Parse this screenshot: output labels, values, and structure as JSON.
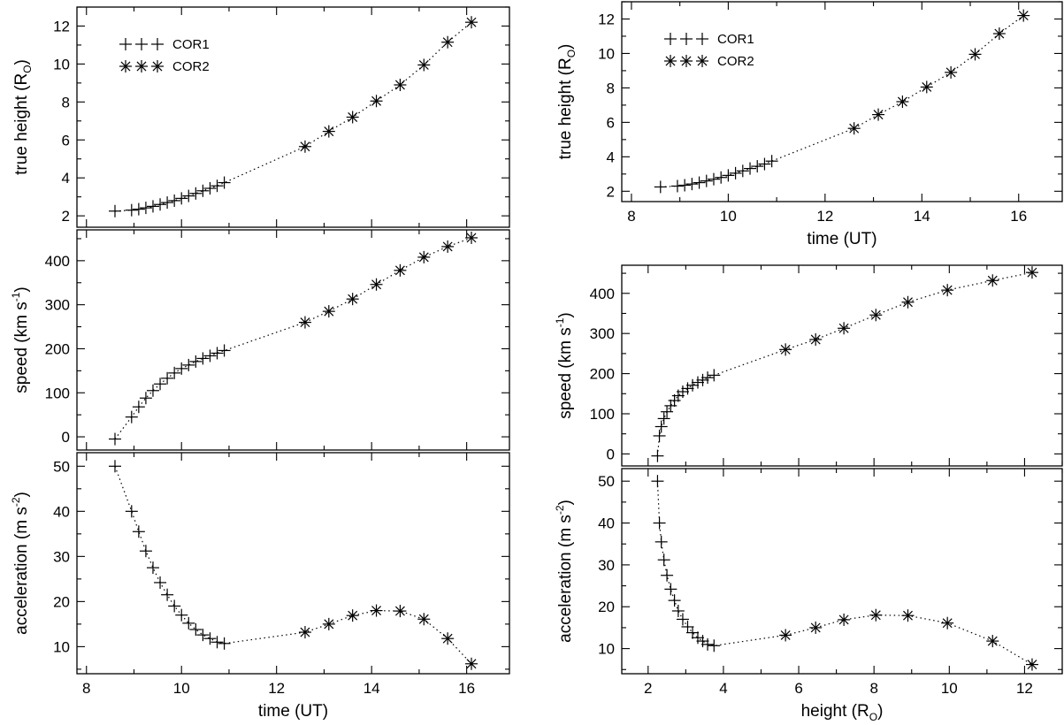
{
  "chart_data": [
    {
      "id": "lt",
      "type": "line",
      "ylabel": "true height (R⊙)",
      "ylabel_base": "true height (R",
      "ylabel_sub": "O",
      "ylabel_end": ")",
      "xlim": [
        7.8,
        16.9
      ],
      "ylim": [
        1.4,
        13.0
      ],
      "xticks": [
        8,
        10,
        12,
        14,
        16
      ],
      "yticks": [
        2,
        4,
        6,
        8,
        10,
        12
      ],
      "show_xticklabels": false,
      "legend": [
        {
          "label": "COR1",
          "marker": "plus"
        },
        {
          "label": "COR2",
          "marker": "star"
        }
      ],
      "series": [
        {
          "name": "COR1",
          "marker": "plus",
          "x": [
            8.6,
            8.95,
            9.1,
            9.25,
            9.4,
            9.55,
            9.7,
            9.85,
            10.0,
            10.15,
            10.3,
            10.45,
            10.6,
            10.75,
            10.9
          ],
          "y": [
            2.25,
            2.3,
            2.35,
            2.42,
            2.5,
            2.6,
            2.7,
            2.8,
            2.92,
            3.05,
            3.18,
            3.32,
            3.45,
            3.58,
            3.75
          ]
        },
        {
          "name": "COR2",
          "marker": "star",
          "x": [
            12.6,
            13.1,
            13.6,
            14.1,
            14.6,
            15.1,
            15.6,
            16.1
          ],
          "y": [
            5.65,
            6.45,
            7.2,
            8.05,
            8.9,
            9.95,
            11.15,
            12.2
          ]
        }
      ]
    },
    {
      "id": "lm",
      "type": "line",
      "ylabel": "speed (km s⁻¹)",
      "ylabel_base": "speed (km s",
      "ylabel_sup": "-1",
      "ylabel_end": ")",
      "xlim": [
        7.8,
        16.9
      ],
      "ylim": [
        -30,
        470
      ],
      "xticks": [
        8,
        10,
        12,
        14,
        16
      ],
      "yticks": [
        0,
        100,
        200,
        300,
        400
      ],
      "show_xticklabels": false,
      "series": [
        {
          "name": "COR1",
          "marker": "plus",
          "x": [
            8.6,
            8.95,
            9.1,
            9.25,
            9.4,
            9.55,
            9.7,
            9.85,
            10.0,
            10.15,
            10.3,
            10.45,
            10.6,
            10.75,
            10.9
          ],
          "y": [
            -5,
            45,
            68,
            88,
            105,
            120,
            133,
            145,
            155,
            163,
            171,
            178,
            184,
            190,
            196
          ]
        },
        {
          "name": "COR2",
          "marker": "star",
          "x": [
            12.6,
            13.1,
            13.6,
            14.1,
            14.6,
            15.1,
            15.6,
            16.1
          ],
          "y": [
            260,
            285,
            313,
            346,
            378,
            408,
            432,
            452
          ]
        }
      ]
    },
    {
      "id": "lb",
      "type": "line",
      "xlabel": "time (UT)",
      "ylabel": "acceleration (m s⁻²)",
      "ylabel_base": "acceleration (m s",
      "ylabel_sup": "-2",
      "ylabel_end": ")",
      "xlim": [
        7.8,
        16.9
      ],
      "ylim": [
        4,
        53
      ],
      "xticks": [
        8,
        10,
        12,
        14,
        16
      ],
      "yticks": [
        10,
        20,
        30,
        40,
        50
      ],
      "show_xticklabels": true,
      "series": [
        {
          "name": "COR1",
          "marker": "plus",
          "x": [
            8.6,
            8.95,
            9.1,
            9.25,
            9.4,
            9.55,
            9.7,
            9.85,
            10.0,
            10.15,
            10.3,
            10.45,
            10.6,
            10.75,
            10.9
          ],
          "y": [
            50,
            40,
            35.5,
            31.2,
            27.5,
            24.2,
            21.5,
            19.0,
            17.0,
            15.2,
            13.8,
            12.6,
            11.8,
            11.0,
            10.7
          ]
        },
        {
          "name": "COR2",
          "marker": "star",
          "x": [
            12.6,
            13.1,
            13.6,
            14.1,
            14.6,
            15.1,
            15.6,
            16.1
          ],
          "y": [
            13.2,
            15.0,
            16.9,
            18.0,
            17.9,
            16.1,
            11.8,
            6.2
          ]
        }
      ]
    },
    {
      "id": "rt",
      "type": "line",
      "xlabel": "time (UT)",
      "ylabel": "true height (R⊙)",
      "ylabel_base": "true height (R",
      "ylabel_sub": "O",
      "ylabel_end": ")",
      "xlim": [
        7.8,
        16.9
      ],
      "ylim": [
        1.4,
        13.0
      ],
      "xticks": [
        8,
        10,
        12,
        14,
        16
      ],
      "yticks": [
        2,
        4,
        6,
        8,
        10,
        12
      ],
      "show_xticklabels": true,
      "legend": [
        {
          "label": "COR1",
          "marker": "plus"
        },
        {
          "label": "COR2",
          "marker": "star"
        }
      ],
      "series": [
        {
          "name": "COR1",
          "marker": "plus",
          "x": [
            8.6,
            8.95,
            9.1,
            9.25,
            9.4,
            9.55,
            9.7,
            9.85,
            10.0,
            10.15,
            10.3,
            10.45,
            10.6,
            10.75,
            10.9
          ],
          "y": [
            2.25,
            2.3,
            2.35,
            2.42,
            2.5,
            2.6,
            2.7,
            2.8,
            2.92,
            3.05,
            3.18,
            3.32,
            3.45,
            3.58,
            3.75
          ]
        },
        {
          "name": "COR2",
          "marker": "star",
          "x": [
            12.6,
            13.1,
            13.6,
            14.1,
            14.6,
            15.1,
            15.6,
            16.1
          ],
          "y": [
            5.65,
            6.45,
            7.2,
            8.05,
            8.9,
            9.95,
            11.15,
            12.2
          ]
        }
      ]
    },
    {
      "id": "rm",
      "type": "line",
      "ylabel": "speed (km s⁻¹)",
      "ylabel_base": "speed (km s",
      "ylabel_sup": "-1",
      "ylabel_end": ")",
      "xlim": [
        1.3,
        13.0
      ],
      "ylim": [
        -30,
        470
      ],
      "xticks": [
        2,
        4,
        6,
        8,
        10,
        12
      ],
      "yticks": [
        0,
        100,
        200,
        300,
        400
      ],
      "show_xticklabels": false,
      "series": [
        {
          "name": "COR1",
          "marker": "plus",
          "x": [
            2.25,
            2.3,
            2.35,
            2.42,
            2.5,
            2.6,
            2.7,
            2.8,
            2.92,
            3.05,
            3.18,
            3.32,
            3.45,
            3.58,
            3.75
          ],
          "y": [
            -5,
            45,
            68,
            88,
            105,
            120,
            133,
            145,
            155,
            163,
            171,
            178,
            184,
            190,
            196
          ]
        },
        {
          "name": "COR2",
          "marker": "star",
          "x": [
            5.65,
            6.45,
            7.2,
            8.05,
            8.9,
            9.95,
            11.15,
            12.2
          ],
          "y": [
            260,
            285,
            313,
            346,
            378,
            408,
            432,
            452
          ]
        }
      ]
    },
    {
      "id": "rb",
      "type": "line",
      "xlabel": "height (R⊙)",
      "xlabel_base": "height (R",
      "xlabel_sub": "O",
      "xlabel_end": ")",
      "ylabel": "acceleration (m s⁻²)",
      "ylabel_base": "acceleration (m s",
      "ylabel_sup": "-2",
      "ylabel_end": ")",
      "xlim": [
        1.3,
        13.0
      ],
      "ylim": [
        4,
        53
      ],
      "xticks": [
        2,
        4,
        6,
        8,
        10,
        12
      ],
      "yticks": [
        10,
        20,
        30,
        40,
        50
      ],
      "show_xticklabels": true,
      "series": [
        {
          "name": "COR1",
          "marker": "plus",
          "x": [
            2.25,
            2.3,
            2.35,
            2.42,
            2.5,
            2.6,
            2.7,
            2.8,
            2.92,
            3.05,
            3.18,
            3.32,
            3.45,
            3.58,
            3.75
          ],
          "y": [
            50,
            40,
            35.5,
            31.2,
            27.5,
            24.2,
            21.5,
            19.0,
            17.0,
            15.2,
            13.8,
            12.6,
            11.8,
            11.0,
            10.7
          ]
        },
        {
          "name": "COR2",
          "marker": "star",
          "x": [
            5.65,
            6.45,
            7.2,
            8.05,
            8.9,
            9.95,
            11.15,
            12.2
          ],
          "y": [
            13.2,
            15.0,
            16.9,
            18.0,
            17.9,
            16.1,
            11.8,
            6.2
          ]
        }
      ]
    }
  ]
}
